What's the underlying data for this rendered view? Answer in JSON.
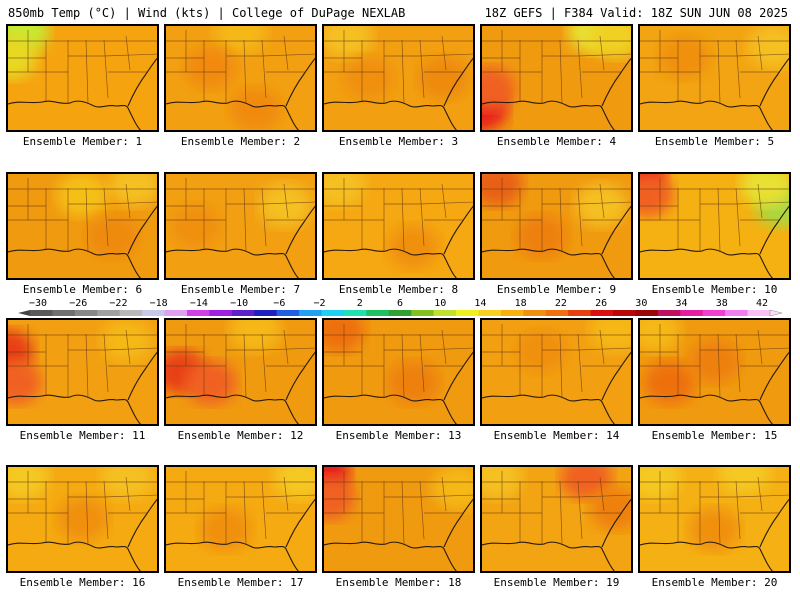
{
  "header": {
    "title_left": "850mb Temp (°C) | Wind (kts) | College of DuPage NEXLAB",
    "title_right": "18Z GEFS | F384 Valid: 18Z SUN JUN 08 2025"
  },
  "panels": [
    {
      "label": "Ensemble Member: 1",
      "base": "#f5a410",
      "hot": [],
      "cool": [
        [
          0,
          0,
          "#7ccf3a"
        ],
        [
          0.1,
          0.05,
          "#c8e830"
        ],
        [
          0.02,
          0.3,
          "#e8d820"
        ]
      ]
    },
    {
      "label": "Ensemble Member: 2",
      "base": "#f2a012",
      "hot": [
        [
          0.3,
          0.4,
          "#f28a10"
        ],
        [
          0.6,
          0.8,
          "#f08a10"
        ]
      ],
      "cool": [
        [
          0.5,
          0.05,
          "#f5b818"
        ]
      ]
    },
    {
      "label": "Ensemble Member: 3",
      "base": "#f2a012",
      "hot": [
        [
          0.8,
          0.5,
          "#ee8a10"
        ],
        [
          0.3,
          0.5,
          "#f09010"
        ]
      ],
      "cool": [
        [
          0.15,
          0.1,
          "#f5c020"
        ]
      ]
    },
    {
      "label": "Ensemble Member: 4",
      "base": "#f09a10",
      "hot": [
        [
          0,
          0.8,
          "#e8201a"
        ],
        [
          0.05,
          0.6,
          "#f06020"
        ]
      ],
      "cool": [
        [
          0.75,
          0.05,
          "#e8e030"
        ],
        [
          0.9,
          0.1,
          "#f0d020"
        ]
      ]
    },
    {
      "label": "Ensemble Member: 5",
      "base": "#f2a412",
      "hot": [
        [
          0.3,
          0.3,
          "#f09010"
        ]
      ],
      "cool": [
        [
          0.9,
          0.2,
          "#f5c020"
        ]
      ]
    },
    {
      "label": "Ensemble Member: 6",
      "base": "#f09a10",
      "hot": [
        [
          0.7,
          0.6,
          "#ee8a10"
        ]
      ],
      "cool": [
        [
          0.85,
          0.1,
          "#f5c020"
        ],
        [
          0.5,
          0.2,
          "#f5c018"
        ]
      ]
    },
    {
      "label": "Ensemble Member: 7",
      "base": "#f2a012",
      "hot": [
        [
          0.2,
          0.5,
          "#f09010"
        ]
      ],
      "cool": [
        [
          0.8,
          0.3,
          "#f5c020"
        ]
      ]
    },
    {
      "label": "Ensemble Member: 8",
      "base": "#f5a812",
      "hot": [
        [
          0.6,
          0.7,
          "#f09010"
        ]
      ],
      "cool": [
        [
          0.1,
          0.1,
          "#f5c020"
        ]
      ]
    },
    {
      "label": "Ensemble Member: 9",
      "base": "#f09a10",
      "hot": [
        [
          0.1,
          0.1,
          "#e86018"
        ],
        [
          0.4,
          0.6,
          "#ee8010"
        ]
      ],
      "cool": [
        [
          0.8,
          0.3,
          "#f5c020"
        ]
      ]
    },
    {
      "label": "Ensemble Member: 10",
      "base": "#f5b012",
      "hot": [
        [
          0,
          0,
          "#e8201a"
        ],
        [
          0.05,
          0.2,
          "#f06020"
        ]
      ],
      "cool": [
        [
          0.95,
          0.3,
          "#a8d840"
        ],
        [
          0.85,
          0.1,
          "#e8e030"
        ]
      ]
    },
    {
      "label": "Ensemble Member: 11",
      "base": "#f2a012",
      "hot": [
        [
          0,
          0.3,
          "#e84018"
        ],
        [
          0.05,
          0.6,
          "#f06020"
        ]
      ],
      "cool": [
        [
          0.8,
          0.2,
          "#f5b818"
        ]
      ]
    },
    {
      "label": "Ensemble Member: 12",
      "base": "#f09a10",
      "hot": [
        [
          0.1,
          0.5,
          "#e84018"
        ],
        [
          0.3,
          0.6,
          "#f06020"
        ]
      ],
      "cool": [
        [
          0.6,
          0.1,
          "#f5b818"
        ]
      ]
    },
    {
      "label": "Ensemble Member: 13",
      "base": "#f09a10",
      "hot": [
        [
          0.1,
          0.1,
          "#ee7010"
        ],
        [
          0.6,
          0.6,
          "#ee8010"
        ]
      ],
      "cool": []
    },
    {
      "label": "Ensemble Member: 14",
      "base": "#f2a012",
      "hot": [
        [
          0.4,
          0.3,
          "#f09010"
        ]
      ],
      "cool": [
        [
          0.9,
          0.1,
          "#f5b818"
        ]
      ]
    },
    {
      "label": "Ensemble Member: 15",
      "base": "#f09a10",
      "hot": [
        [
          0.2,
          0.6,
          "#ee7010"
        ],
        [
          0.5,
          0.4,
          "#ee8010"
        ]
      ],
      "cool": [
        [
          0.1,
          0.1,
          "#f5b818"
        ]
      ]
    },
    {
      "label": "Ensemble Member: 16",
      "base": "#f5aa12",
      "hot": [
        [
          0.5,
          0.5,
          "#f09010"
        ]
      ],
      "cool": [
        [
          0.1,
          0.1,
          "#f5c820"
        ],
        [
          0.8,
          0.1,
          "#f5c020"
        ]
      ]
    },
    {
      "label": "Ensemble Member: 17",
      "base": "#f5aa12",
      "hot": [
        [
          0.4,
          0.6,
          "#f09010"
        ]
      ],
      "cool": [
        [
          0.9,
          0.1,
          "#f5c820"
        ]
      ]
    },
    {
      "label": "Ensemble Member: 18",
      "base": "#f09a10",
      "hot": [
        [
          0,
          0.05,
          "#e8201a"
        ],
        [
          0.03,
          0.3,
          "#f06020"
        ]
      ],
      "cool": [
        [
          0.9,
          0.2,
          "#f5b818"
        ]
      ]
    },
    {
      "label": "Ensemble Member: 19",
      "base": "#f2a412",
      "hot": [
        [
          0.7,
          0.1,
          "#f06020"
        ],
        [
          0.9,
          0.4,
          "#ee8010"
        ]
      ],
      "cool": [
        [
          0.1,
          0.1,
          "#f5c020"
        ]
      ]
    },
    {
      "label": "Ensemble Member: 20",
      "base": "#f5b014",
      "hot": [
        [
          0.5,
          0.6,
          "#f09010"
        ]
      ],
      "cool": [
        [
          0.1,
          0.1,
          "#f5c820"
        ],
        [
          0.7,
          0.05,
          "#f5c820"
        ]
      ]
    }
  ],
  "colorbar": {
    "ticks": [
      "−30",
      "−26",
      "−22",
      "−18",
      "−14",
      "−10",
      "−6",
      "−2",
      "2",
      "6",
      "10",
      "14",
      "18",
      "22",
      "26",
      "30",
      "34",
      "38",
      "42"
    ],
    "colors": [
      "#5a5a5a",
      "#707070",
      "#888888",
      "#a0a0a0",
      "#b8b8b8",
      "#c8c8e8",
      "#e0a0f0",
      "#d040e8",
      "#a020e0",
      "#6020c8",
      "#2020c0",
      "#2060e0",
      "#20a0f0",
      "#20d0f0",
      "#20e0b0",
      "#20c060",
      "#30a030",
      "#80c020",
      "#c0e030",
      "#f0f020",
      "#f8d020",
      "#f8b010",
      "#f09010",
      "#f07010",
      "#e84010",
      "#d81010",
      "#b80808",
      "#980808",
      "#c01060",
      "#e020a0",
      "#f040d0",
      "#f080f0",
      "#f8c0f8"
    ]
  }
}
